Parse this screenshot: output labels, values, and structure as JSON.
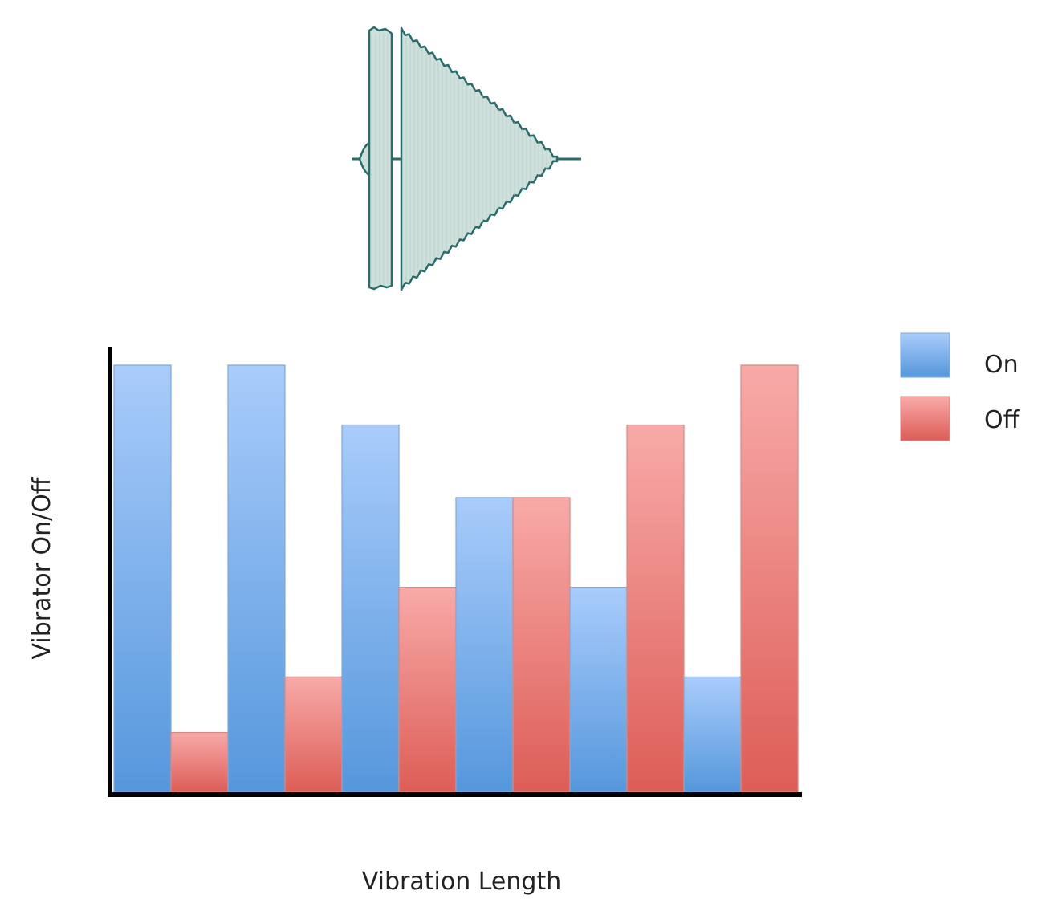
{
  "chart_data": {
    "type": "bar",
    "xlabel": "Vibration Length",
    "ylabel": "Vibrator On/Off",
    "ylim": [
      0,
      100
    ],
    "grid": false,
    "legend_placement": "top-right",
    "series": [
      {
        "name": "On",
        "color": "#6fa6e6",
        "values": [
          100,
          100,
          86,
          69,
          48,
          27
        ]
      },
      {
        "name": "Off",
        "color": "#ea7a74",
        "values": [
          14,
          27,
          48,
          69,
          86,
          100
        ]
      }
    ]
  },
  "colors": {
    "on_top": "#a9ccfb",
    "on_bottom": "#5597dc",
    "off_top": "#f8aaa8",
    "off_bottom": "#dd5d57",
    "waveform_stroke": "#2a6b6b",
    "waveform_fill": "#cfe0dc"
  },
  "icons": {
    "waveform": "waveform-icon"
  }
}
